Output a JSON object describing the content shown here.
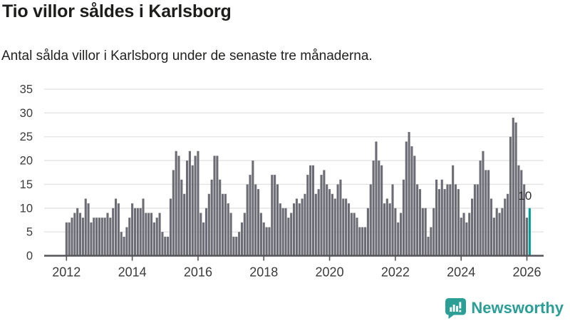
{
  "title": "Tio villor såldes i Karlsborg",
  "subtitle": "Antal sålda villor i Karlsborg under de senaste tre månaderna.",
  "annotation_label": "10",
  "logo_text": "Newsworthy",
  "colors": {
    "bar": "#6c6c75",
    "highlight": "#009e96",
    "grid": "#e2e2e2",
    "axis": "#55555a",
    "tick_text": "#3b3b3b",
    "annotation_text": "#2e2e2e",
    "logo": "#2b9e96"
  },
  "chart_data": {
    "type": "bar",
    "title": "Tio villor såldes i Karlsborg",
    "subtitle": "Antal sålda villor i Karlsborg under de senaste tre månaderna.",
    "xlabel": "",
    "ylabel": "",
    "ylim": [
      0,
      35
    ],
    "grid": true,
    "y_ticks": [
      0,
      5,
      10,
      15,
      20,
      25,
      30,
      35
    ],
    "x_tick_years": [
      2012,
      2014,
      2016,
      2018,
      2020,
      2022,
      2024,
      2026
    ],
    "start_month": "2012-01",
    "end_month": "2026-02",
    "highlight_last_bar": true,
    "highlight_value": 10,
    "values": [
      7,
      7,
      8,
      9,
      10,
      9,
      8,
      12,
      11,
      7,
      8,
      8,
      8,
      8,
      8,
      9,
      8,
      10,
      12,
      11,
      5,
      4,
      6,
      8,
      11,
      10,
      10,
      10,
      12,
      9,
      9,
      9,
      7,
      8,
      9,
      5,
      4,
      4,
      12,
      18,
      22,
      21,
      16,
      13,
      20,
      22,
      19,
      21,
      22,
      9,
      7,
      10,
      13,
      16,
      21,
      21,
      16,
      13,
      13,
      11,
      9,
      4,
      4,
      5,
      7,
      9,
      15,
      17,
      20,
      15,
      14,
      9,
      7,
      6,
      6,
      17,
      17,
      15,
      11,
      10,
      10,
      8,
      9,
      11,
      12,
      11,
      12,
      13,
      17,
      19,
      19,
      13,
      14,
      17,
      18,
      15,
      14,
      13,
      12,
      15,
      16,
      12,
      12,
      11,
      9,
      9,
      8,
      6,
      6,
      6,
      10,
      15,
      20,
      24,
      20,
      19,
      11,
      12,
      11,
      15,
      10,
      7,
      9,
      16,
      24,
      26,
      23,
      21,
      15,
      14,
      10,
      10,
      4,
      6,
      10,
      16,
      14,
      16,
      14,
      15,
      15,
      19,
      15,
      14,
      8,
      9,
      7,
      9,
      12,
      15,
      15,
      20,
      22,
      18,
      18,
      12,
      8,
      10,
      9,
      10,
      12,
      13,
      25,
      29,
      28,
      19,
      18,
      15,
      8,
      10
    ]
  }
}
